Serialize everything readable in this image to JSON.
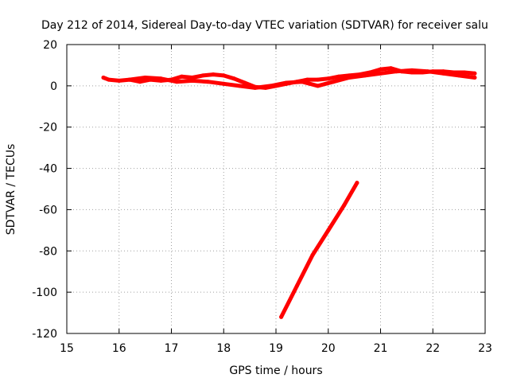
{
  "chart_data": {
    "type": "line",
    "title": "Day 212 of 2014, Sidereal Day-to-day VTEC variation (SDTVAR) for receiver salu",
    "xlabel": "GPS time / hours",
    "ylabel": "SDTVAR / TECUs",
    "xlim": [
      15,
      23
    ],
    "ylim": [
      -120,
      20
    ],
    "grid": true,
    "xticks": [
      15,
      16,
      17,
      18,
      19,
      20,
      21,
      22,
      23
    ],
    "yticks": [
      -120,
      -100,
      -80,
      -60,
      -40,
      -20,
      0,
      20
    ],
    "series_color": "#ff0000",
    "series": [
      {
        "name": "trace-a",
        "x": [
          15.7,
          15.8,
          16.0,
          16.2,
          16.4,
          16.6,
          16.8,
          17.0,
          17.2,
          17.4,
          17.6,
          17.8,
          18.0,
          18.2,
          18.4,
          18.6,
          18.8,
          19.0,
          19.2,
          19.4,
          19.6,
          19.8,
          20.0,
          20.2,
          20.4,
          20.6,
          20.8,
          21.0,
          21.2,
          21.4,
          21.6,
          21.8,
          22.0,
          22.2,
          22.4,
          22.6,
          22.8
        ],
        "values": [
          4,
          3,
          2.5,
          3,
          2,
          3,
          2.5,
          3,
          4.5,
          4,
          5,
          5.5,
          5,
          3.5,
          1.5,
          -0.5,
          -1,
          0,
          1,
          2,
          3,
          3,
          3.5,
          4.5,
          5,
          5.5,
          6.5,
          8,
          8.5,
          7,
          6.5,
          6.5,
          7,
          7,
          6.5,
          6.5,
          6
        ]
      },
      {
        "name": "trace-b",
        "x": [
          16.2,
          16.5,
          16.8,
          17.1,
          17.4,
          17.7,
          18.0,
          18.3,
          18.6,
          18.9,
          19.2,
          19.5,
          19.8,
          20.1,
          20.4,
          20.7,
          21.0,
          21.3,
          21.6,
          21.9,
          22.2,
          22.5,
          22.8
        ],
        "values": [
          3,
          4,
          3.5,
          2,
          2.5,
          2,
          1,
          0,
          -1,
          0,
          1.5,
          2,
          0,
          2,
          4,
          5,
          6,
          7,
          7.5,
          7,
          6,
          5,
          4
        ]
      },
      {
        "name": "trace-c",
        "x": [
          19.1,
          19.4,
          19.7,
          20.0,
          20.3,
          20.55
        ],
        "values": [
          -112,
          -97,
          -82,
          -70,
          -58,
          -47
        ]
      }
    ]
  }
}
